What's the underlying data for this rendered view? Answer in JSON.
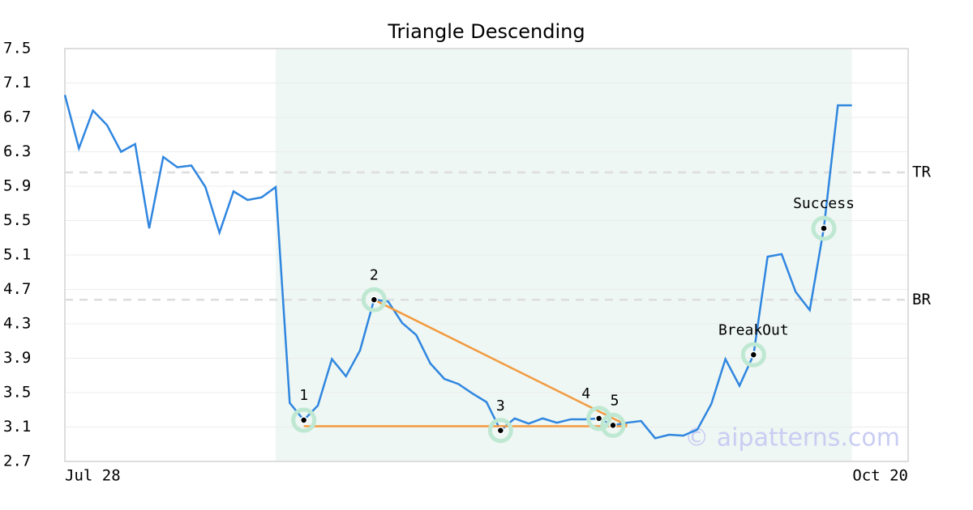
{
  "chart_data": {
    "type": "line",
    "title": "Triangle Descending",
    "x": [
      0,
      1,
      2,
      3,
      4,
      5,
      6,
      7,
      8,
      9,
      10,
      11,
      12,
      13,
      14,
      15,
      16,
      17,
      18,
      19,
      20,
      21,
      22,
      23,
      24,
      25,
      26,
      27,
      28,
      29,
      30,
      31,
      32,
      33,
      34,
      35,
      36,
      37,
      38,
      39,
      40,
      41,
      42,
      43,
      44,
      45,
      46,
      47,
      48,
      49,
      50,
      51,
      52,
      53,
      54,
      55,
      56
    ],
    "series": [
      {
        "color": "#2f86e0",
        "values": [
          6.96,
          6.34,
          6.78,
          6.61,
          6.3,
          6.39,
          5.41,
          6.24,
          6.12,
          6.14,
          5.89,
          5.36,
          5.84,
          5.74,
          5.77,
          5.89,
          3.38,
          3.18,
          3.35,
          3.89,
          3.69,
          3.99,
          4.58,
          4.56,
          4.31,
          4.17,
          3.84,
          3.66,
          3.6,
          3.49,
          3.39,
          3.06,
          3.2,
          3.14,
          3.2,
          3.15,
          3.19,
          3.19,
          3.2,
          3.12,
          3.15,
          3.17,
          2.97,
          3.01,
          3.0,
          3.07,
          3.37,
          3.89,
          3.58,
          3.94,
          5.08,
          5.11,
          4.67,
          4.46,
          5.41,
          6.84,
          6.84
        ]
      }
    ],
    "xlim": [
      0,
      60
    ],
    "xticks": [
      {
        "value": 0,
        "label": "Jul 28"
      },
      {
        "value": 60,
        "label": "Oct 20"
      }
    ],
    "ylim": [
      2.7,
      7.5
    ],
    "yticks": [
      2.7,
      3.1,
      3.5,
      3.9,
      4.3,
      4.7,
      5.1,
      5.5,
      5.9,
      6.3,
      6.7,
      7.1,
      7.5
    ],
    "grid": true,
    "shaded_range": [
      15,
      56
    ],
    "shade_color": "#eef7f3",
    "reference_lines": [
      {
        "label": "TR",
        "value": 6.06
      },
      {
        "label": "BR",
        "value": 4.58
      }
    ],
    "pattern_lines": {
      "color": "#f39a3f",
      "lines": [
        {
          "x": [
            17,
            40
          ],
          "values": [
            3.11,
            3.11
          ]
        },
        {
          "x": [
            22,
            40
          ],
          "values": [
            4.58,
            3.12
          ]
        }
      ]
    },
    "markers": [
      {
        "label": "1",
        "x": 17,
        "value": 3.18
      },
      {
        "label": "2",
        "x": 22,
        "value": 4.58
      },
      {
        "label": "3",
        "x": 31,
        "value": 3.06
      },
      {
        "label": "4",
        "x": 38,
        "value": 3.2
      },
      {
        "label": "5",
        "x": 39,
        "value": 3.12
      },
      {
        "label": "BreakOut",
        "x": 49,
        "value": 3.94
      },
      {
        "label": "Success",
        "x": 54,
        "value": 5.41
      }
    ],
    "watermark": "© aipatterns.com"
  }
}
